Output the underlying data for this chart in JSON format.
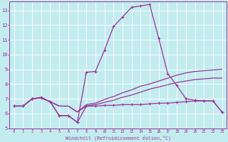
{
  "xlabel": "Windchill (Refroidissement éolien,°C)",
  "background_color": "#c3ecef",
  "grid_color": "#ffffff",
  "line_color": "#993399",
  "xlim": [
    -0.5,
    23.5
  ],
  "ylim": [
    5,
    13.6
  ],
  "yticks": [
    5,
    6,
    7,
    8,
    9,
    10,
    11,
    12,
    13
  ],
  "xticks": [
    0,
    1,
    2,
    3,
    4,
    5,
    6,
    7,
    8,
    9,
    10,
    11,
    12,
    13,
    14,
    15,
    16,
    17,
    18,
    19,
    20,
    21,
    22,
    23
  ],
  "line1_x": [
    0,
    1,
    2,
    3,
    4,
    5,
    6,
    7,
    8,
    9,
    10,
    11,
    12,
    13,
    14,
    15,
    16,
    17,
    18,
    19,
    20,
    21,
    22,
    23
  ],
  "line1_y": [
    6.5,
    6.5,
    7.0,
    7.05,
    6.8,
    5.85,
    5.85,
    5.4,
    6.5,
    6.5,
    6.55,
    6.55,
    6.6,
    6.6,
    6.6,
    6.65,
    6.7,
    6.7,
    6.75,
    6.8,
    6.85,
    6.85,
    6.85,
    6.1
  ],
  "line2_x": [
    0,
    1,
    2,
    3,
    4,
    5,
    6,
    7,
    8,
    9,
    10,
    11,
    12,
    13,
    14,
    15,
    16,
    17,
    18,
    19,
    20,
    21,
    22,
    23
  ],
  "line2_y": [
    6.5,
    6.5,
    7.0,
    7.05,
    6.8,
    6.5,
    6.5,
    6.1,
    6.5,
    6.6,
    6.75,
    6.9,
    7.1,
    7.25,
    7.45,
    7.65,
    7.8,
    7.95,
    8.1,
    8.2,
    8.3,
    8.35,
    8.4,
    8.4
  ],
  "line3_x": [
    0,
    1,
    2,
    3,
    4,
    5,
    6,
    7,
    8,
    9,
    10,
    11,
    12,
    13,
    14,
    15,
    16,
    17,
    18,
    19,
    20,
    21,
    22,
    23
  ],
  "line3_y": [
    6.5,
    6.5,
    7.0,
    7.05,
    6.8,
    6.5,
    6.5,
    6.1,
    6.6,
    6.7,
    6.95,
    7.15,
    7.4,
    7.6,
    7.85,
    8.0,
    8.2,
    8.4,
    8.6,
    8.75,
    8.85,
    8.9,
    8.95,
    9.0
  ],
  "line4_x": [
    0,
    1,
    2,
    3,
    4,
    5,
    6,
    7,
    8,
    9,
    10,
    11,
    12,
    13,
    14,
    15,
    16,
    17,
    18,
    19,
    20,
    21,
    22,
    23
  ],
  "line4_y": [
    6.5,
    6.5,
    7.0,
    7.1,
    6.8,
    5.85,
    5.85,
    5.4,
    8.8,
    8.85,
    10.3,
    11.9,
    12.55,
    13.2,
    13.3,
    13.4,
    11.1,
    8.7,
    7.9,
    7.0,
    6.9,
    6.85,
    6.85,
    6.1
  ]
}
